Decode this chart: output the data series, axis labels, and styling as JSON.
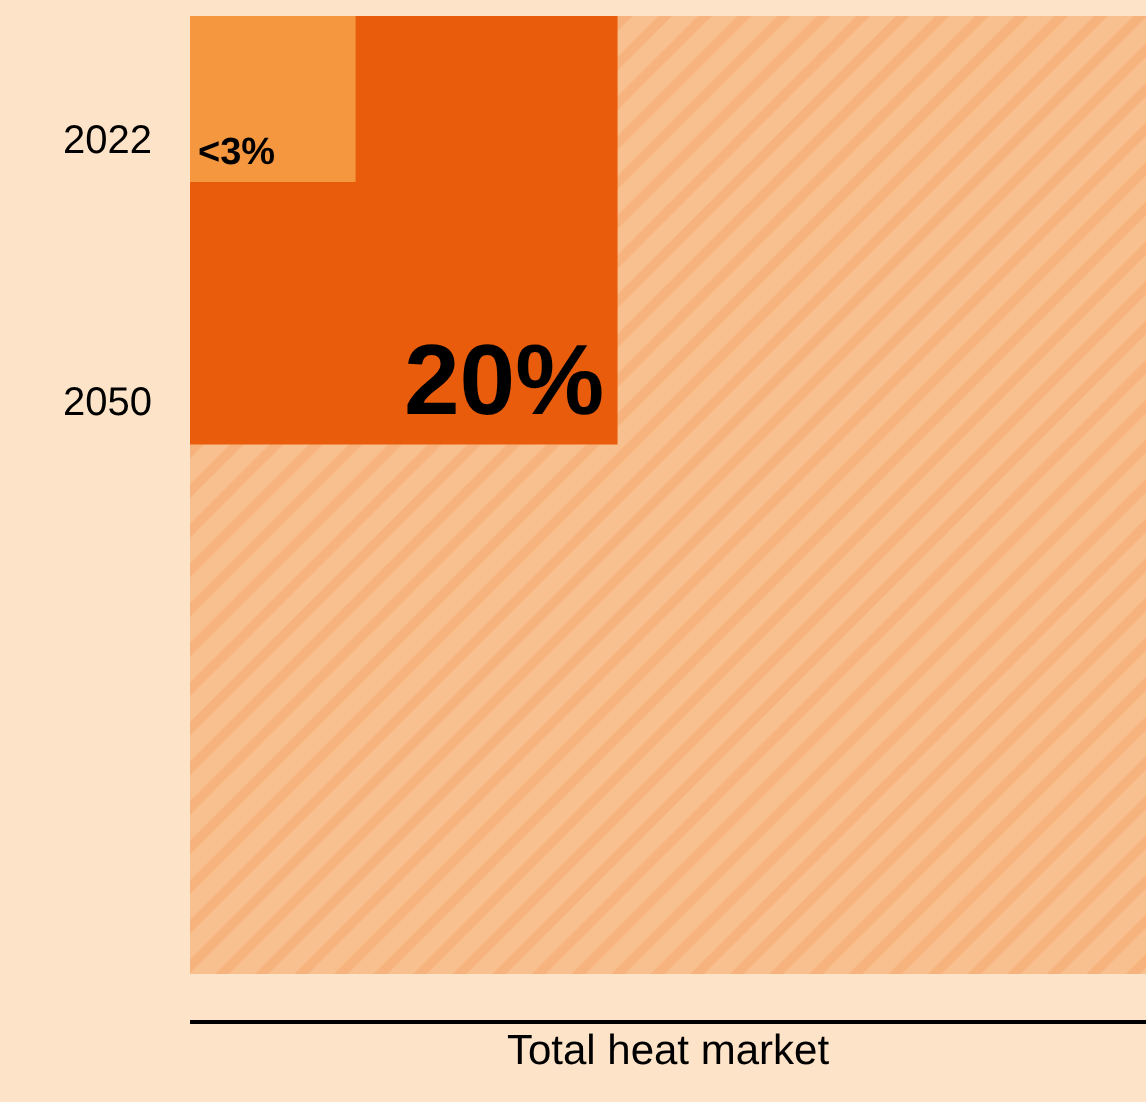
{
  "chart_data": {
    "type": "other",
    "categories": [
      "2022",
      "2050"
    ],
    "values": [
      3,
      20
    ],
    "value_labels": [
      "<3%",
      "20%"
    ],
    "colors": [
      "#f4973e",
      "#e95c0c"
    ],
    "xlabel": "Total heat market"
  }
}
